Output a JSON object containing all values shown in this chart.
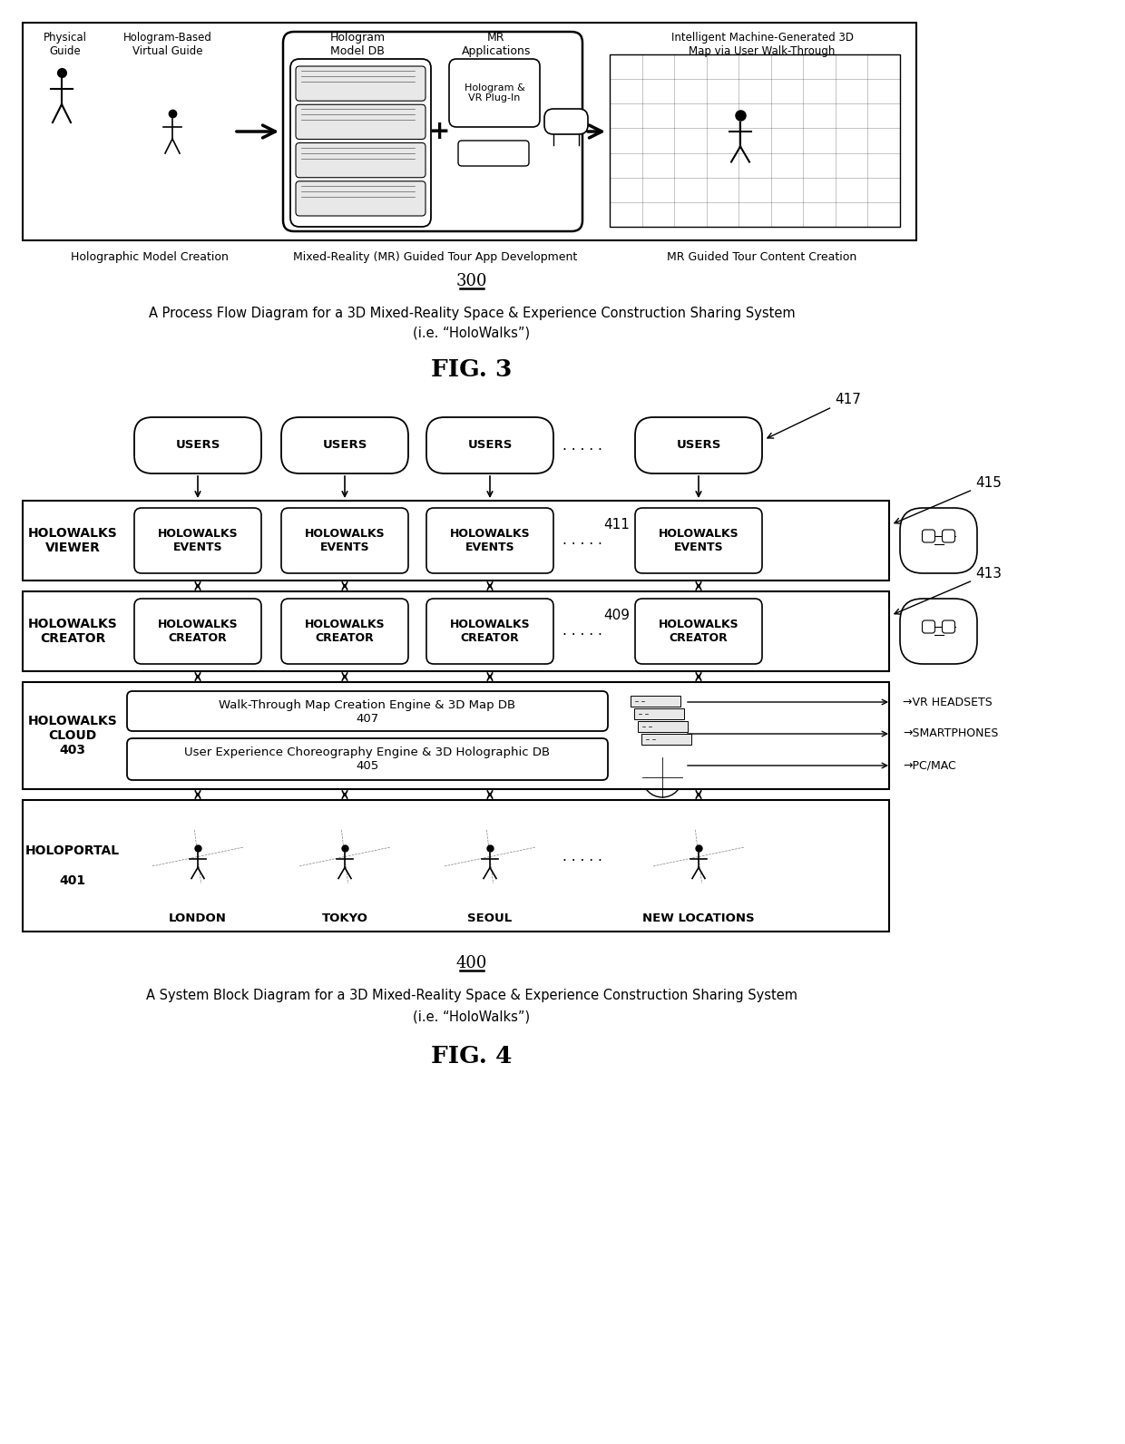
{
  "bg_color": "#ffffff",
  "fig3": {
    "caption_line1": "A Process Flow Diagram for a 3D Mixed-Reality Space & Experience Construction Sharing System",
    "caption_line2": "(i.e. “HoloWalks”)",
    "fig_label": "FIG. 3",
    "fig_number": "300"
  },
  "fig4": {
    "fig_number": "400",
    "caption_line1": "A System Block Diagram for a 3D Mixed-Reality Space & Experience Construction Sharing System",
    "caption_line2": "(i.e. “HoloWalks”)",
    "fig_label": "FIG. 4",
    "locations": [
      "LONDON",
      "TOKYO",
      "SEOUL",
      "NEW LOCATIONS"
    ],
    "devices": [
      "VR HEADSETS",
      "SMARTPHONES",
      "PC/MAC"
    ],
    "ref_numbers": {
      "users": "417",
      "viewer": "415",
      "viewer_dots": "411",
      "creator": "413",
      "creator_dots": "409"
    }
  }
}
